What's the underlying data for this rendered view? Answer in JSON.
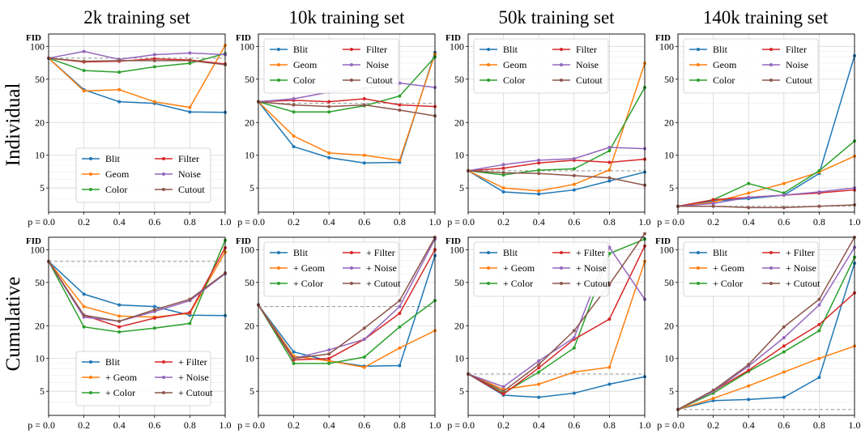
{
  "column_titles": [
    "2k training set",
    "10k training set",
    "50k training set",
    "140k training set"
  ],
  "row_titles": [
    "Individual",
    "Cumulative"
  ],
  "colors": {
    "Blit": "#1f77b4",
    "Geom": "#ff7f0e",
    "Color": "#2ca02c",
    "Filter": "#d62728",
    "Noise": "#9467bd",
    "Cutout": "#8c564b",
    "baseline": "#999999"
  },
  "chart_data": [
    {
      "type": "line",
      "row": 0,
      "col": 0,
      "ylabel": "FID",
      "yscale": "log",
      "ylim": [
        3,
        130
      ],
      "yticks": [
        5,
        10,
        20,
        50,
        100
      ],
      "grid": true,
      "legend_position": "lower-center",
      "x": [
        0.0,
        0.2,
        0.4,
        0.6,
        0.8,
        1.0
      ],
      "xticklabels": [
        "p = 0.0",
        "0.2",
        "0.4",
        "0.6",
        "0.8",
        "1.0"
      ],
      "baseline": 78,
      "series": [
        {
          "name": "Blit",
          "values": [
            78,
            40,
            31,
            30,
            25,
            24.8
          ]
        },
        {
          "name": "Geom",
          "values": [
            78,
            39,
            40,
            31,
            27.5,
            102
          ]
        },
        {
          "name": "Color",
          "values": [
            78,
            60,
            58,
            65,
            70,
            86
          ]
        },
        {
          "name": "Filter",
          "values": [
            78,
            72,
            73,
            77,
            75,
            69
          ]
        },
        {
          "name": "Noise",
          "values": [
            78,
            90,
            76,
            84,
            87,
            84
          ]
        },
        {
          "name": "Cutout",
          "values": [
            78,
            73,
            74,
            74,
            74,
            68
          ]
        }
      ]
    },
    {
      "type": "line",
      "row": 0,
      "col": 1,
      "ylabel": "FID",
      "yscale": "log",
      "ylim": [
        3,
        130
      ],
      "yticks": [
        5,
        10,
        20,
        50,
        100
      ],
      "grid": true,
      "legend_position": "upper-left",
      "x": [
        0.0,
        0.2,
        0.4,
        0.6,
        0.8,
        1.0
      ],
      "xticklabels": [
        "p = 0.0",
        "0.2",
        "0.4",
        "0.6",
        "0.8",
        "1.0"
      ],
      "baseline": 30,
      "series": [
        {
          "name": "Blit",
          "values": [
            31,
            12,
            9.5,
            8.5,
            8.6,
            88
          ]
        },
        {
          "name": "Geom",
          "values": [
            31,
            15,
            10.5,
            10,
            9,
            85
          ]
        },
        {
          "name": "Color",
          "values": [
            31,
            25,
            25,
            28.5,
            35,
            80
          ]
        },
        {
          "name": "Filter",
          "values": [
            31,
            32,
            31,
            33,
            29,
            28
          ]
        },
        {
          "name": "Noise",
          "values": [
            31,
            33,
            38,
            41,
            46,
            42
          ]
        },
        {
          "name": "Cutout",
          "values": [
            31,
            29,
            28,
            29,
            26,
            23
          ]
        }
      ]
    },
    {
      "type": "line",
      "row": 0,
      "col": 2,
      "ylabel": "FID",
      "yscale": "log",
      "ylim": [
        3,
        130
      ],
      "yticks": [
        5,
        10,
        20,
        50,
        100
      ],
      "grid": true,
      "legend_position": "upper-left",
      "x": [
        0.0,
        0.2,
        0.4,
        0.6,
        0.8,
        1.0
      ],
      "xticklabels": [
        "p = 0.0",
        "0.2",
        "0.4",
        "0.6",
        "0.8",
        "1.0"
      ],
      "baseline": 7.2,
      "series": [
        {
          "name": "Blit",
          "values": [
            7.2,
            4.6,
            4.4,
            4.8,
            5.8,
            7
          ]
        },
        {
          "name": "Geom",
          "values": [
            7.2,
            5,
            4.7,
            5.4,
            7.3,
            70
          ]
        },
        {
          "name": "Color",
          "values": [
            7.2,
            6.6,
            7.3,
            7.5,
            11,
            42
          ]
        },
        {
          "name": "Filter",
          "values": [
            7.2,
            7.6,
            8.5,
            9,
            8.6,
            9.2
          ]
        },
        {
          "name": "Noise",
          "values": [
            7.2,
            8.2,
            9,
            9.3,
            11.8,
            11.5
          ]
        },
        {
          "name": "Cutout",
          "values": [
            7.2,
            6.9,
            6.8,
            6.5,
            6.2,
            5.3
          ]
        }
      ]
    },
    {
      "type": "line",
      "row": 0,
      "col": 3,
      "ylabel": "FID",
      "yscale": "log",
      "ylim": [
        3,
        130
      ],
      "yticks": [
        5,
        10,
        20,
        50,
        100
      ],
      "grid": true,
      "legend_position": "upper-left",
      "x": [
        0.0,
        0.2,
        0.4,
        0.6,
        0.8,
        1.0
      ],
      "xticklabels": [
        "p = 0.0",
        "0.2",
        "0.4",
        "0.6",
        "0.8",
        "1.0"
      ],
      "baseline": 3.4,
      "series": [
        {
          "name": "Blit",
          "values": [
            3.4,
            3.8,
            4,
            4.3,
            6.8,
            82
          ]
        },
        {
          "name": "Geom",
          "values": [
            3.4,
            3.7,
            4.5,
            5.5,
            7,
            9.8
          ]
        },
        {
          "name": "Color",
          "values": [
            3.4,
            3.9,
            5.5,
            4.5,
            7.2,
            13.5
          ]
        },
        {
          "name": "Filter",
          "values": [
            3.4,
            3.9,
            4.1,
            4.3,
            4.5,
            4.8
          ]
        },
        {
          "name": "Noise",
          "values": [
            3.4,
            3.6,
            4.1,
            4.3,
            4.6,
            5
          ]
        },
        {
          "name": "Cutout",
          "values": [
            3.4,
            3.4,
            3.3,
            3.3,
            3.4,
            3.5
          ]
        }
      ]
    },
    {
      "type": "line",
      "row": 1,
      "col": 0,
      "ylabel": "FID",
      "yscale": "log",
      "ylim": [
        3,
        130
      ],
      "yticks": [
        5,
        10,
        20,
        50,
        100
      ],
      "grid": true,
      "legend_position": "lower-center",
      "x": [
        0.0,
        0.2,
        0.4,
        0.6,
        0.8,
        1.0
      ],
      "xticklabels": [
        "p = 0.0",
        "0.2",
        "0.4",
        "0.6",
        "0.8",
        "1.0"
      ],
      "baseline": 78,
      "series": [
        {
          "name": "Blit",
          "values": [
            78,
            39,
            31,
            30,
            25,
            24.8
          ]
        },
        {
          "name": "+ Geom",
          "values": [
            78,
            30,
            24.5,
            24,
            26,
            95
          ]
        },
        {
          "name": "+ Color",
          "values": [
            78,
            19.5,
            17.5,
            19,
            21,
            122
          ]
        },
        {
          "name": "+ Filter",
          "values": [
            78,
            25,
            19.5,
            23.5,
            26.5,
            104
          ]
        },
        {
          "name": "+ Noise",
          "values": [
            78,
            24,
            22,
            27,
            34,
            60
          ]
        },
        {
          "name": "+ Cutout",
          "values": [
            78,
            25,
            22,
            28,
            35,
            61
          ]
        }
      ]
    },
    {
      "type": "line",
      "row": 1,
      "col": 1,
      "ylabel": "FID",
      "yscale": "log",
      "ylim": [
        3,
        130
      ],
      "yticks": [
        5,
        10,
        20,
        50,
        100
      ],
      "grid": true,
      "legend_position": "upper-left",
      "x": [
        0.0,
        0.2,
        0.4,
        0.6,
        0.8,
        1.0
      ],
      "xticklabels": [
        "p = 0.0",
        "0.2",
        "0.4",
        "0.6",
        "0.8",
        "1.0"
      ],
      "baseline": 30,
      "series": [
        {
          "name": "Blit",
          "values": [
            31,
            11.5,
            9.5,
            8.5,
            8.6,
            88
          ]
        },
        {
          "name": "+ Geom",
          "values": [
            31,
            10.5,
            9.5,
            8.3,
            12.5,
            18
          ]
        },
        {
          "name": "+ Color",
          "values": [
            31,
            9,
            9,
            10.3,
            19.5,
            34
          ]
        },
        {
          "name": "+ Filter",
          "values": [
            31,
            9.7,
            10,
            15,
            26,
            100
          ]
        },
        {
          "name": "+ Noise",
          "values": [
            31,
            10,
            12,
            15,
            30,
            125
          ]
        },
        {
          "name": "+ Cutout",
          "values": [
            31,
            10,
            11,
            19,
            34,
            130
          ]
        }
      ]
    },
    {
      "type": "line",
      "row": 1,
      "col": 2,
      "ylabel": "FID",
      "yscale": "log",
      "ylim": [
        3,
        130
      ],
      "yticks": [
        5,
        10,
        20,
        50,
        100
      ],
      "grid": true,
      "legend_position": "upper-left",
      "x": [
        0.0,
        0.2,
        0.4,
        0.6,
        0.8,
        1.0
      ],
      "xticklabels": [
        "p = 0.0",
        "0.2",
        "0.4",
        "0.6",
        "0.8",
        "1.0"
      ],
      "baseline": 7.2,
      "series": [
        {
          "name": "Blit",
          "values": [
            7.2,
            4.6,
            4.4,
            4.8,
            5.8,
            6.8
          ]
        },
        {
          "name": "+ Geom",
          "values": [
            7.2,
            5.2,
            5.8,
            7.5,
            8.3,
            78
          ]
        },
        {
          "name": "+ Color",
          "values": [
            7.2,
            4.8,
            7.5,
            12.5,
            92,
            125
          ]
        },
        {
          "name": "+ Filter",
          "values": [
            7.2,
            4.7,
            8.2,
            15,
            23,
            108
          ]
        },
        {
          "name": "+ Noise",
          "values": [
            7.2,
            5.5,
            9.5,
            15.5,
            105,
            35
          ]
        },
        {
          "name": "+ Cutout",
          "values": [
            7.2,
            5,
            8.8,
            18,
            48,
            140
          ]
        }
      ]
    },
    {
      "type": "line",
      "row": 1,
      "col": 3,
      "ylabel": "FID",
      "yscale": "log",
      "ylim": [
        3,
        130
      ],
      "yticks": [
        5,
        10,
        20,
        50,
        100
      ],
      "grid": true,
      "legend_position": "upper-left",
      "x": [
        0.0,
        0.2,
        0.4,
        0.6,
        0.8,
        1.0
      ],
      "xticklabels": [
        "p = 0.0",
        "0.2",
        "0.4",
        "0.6",
        "0.8",
        "1.0"
      ],
      "baseline": 3.4,
      "series": [
        {
          "name": "Blit",
          "values": [
            3.4,
            4.1,
            4.2,
            4.4,
            6.7,
            75
          ]
        },
        {
          "name": "+ Geom",
          "values": [
            3.4,
            4.3,
            5.6,
            7.5,
            10,
            13
          ]
        },
        {
          "name": "+ Color",
          "values": [
            3.4,
            4.8,
            7.6,
            11.5,
            18,
            85
          ]
        },
        {
          "name": "+ Filter",
          "values": [
            3.4,
            5,
            7.8,
            13,
            20.5,
            40
          ]
        },
        {
          "name": "+ Noise",
          "values": [
            3.4,
            5,
            8.5,
            15.5,
            31,
            105
          ]
        },
        {
          "name": "+ Cutout",
          "values": [
            3.4,
            5.1,
            8.8,
            19.5,
            35,
            130
          ]
        }
      ]
    }
  ]
}
